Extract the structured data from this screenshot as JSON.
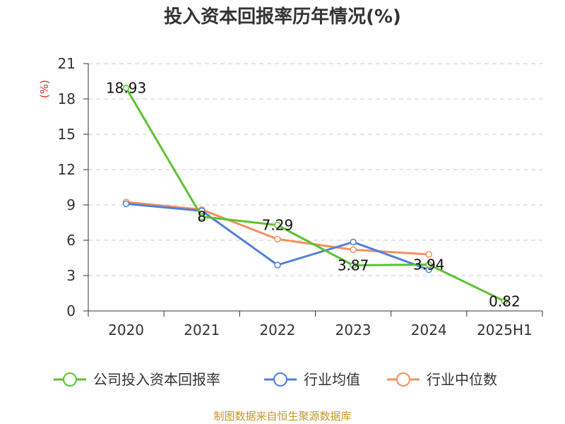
{
  "chart_data": {
    "type": "line",
    "title": "投入资本回报率历年情况(%)",
    "ylabel": "(%)",
    "xlabel": "",
    "categories": [
      "2020",
      "2021",
      "2022",
      "2023",
      "2024",
      "2025H1"
    ],
    "ylim": [
      0,
      21
    ],
    "yticks": [
      0,
      3,
      6,
      9,
      12,
      15,
      18,
      21
    ],
    "grid": true,
    "legend_position": "bottom",
    "series": [
      {
        "name": "公司投入资本回报率",
        "color": "#5cc230",
        "values": [
          18.93,
          8,
          7.29,
          3.87,
          3.94,
          0.82
        ],
        "labels": [
          "18.93",
          "8",
          "7.29",
          "3.87",
          "3.94",
          "0.82"
        ]
      },
      {
        "name": "行业均值",
        "color": "#4f7fdc",
        "values": [
          9.1,
          8.5,
          3.9,
          5.85,
          3.5,
          null
        ]
      },
      {
        "name": "行业中位数",
        "color": "#f5905f",
        "values": [
          9.25,
          8.6,
          6.1,
          5.2,
          4.8,
          null
        ]
      }
    ]
  },
  "source": "制图数据来自恒生聚源数据库",
  "unit_color": "#e0281e",
  "source_color": "#c8962a"
}
